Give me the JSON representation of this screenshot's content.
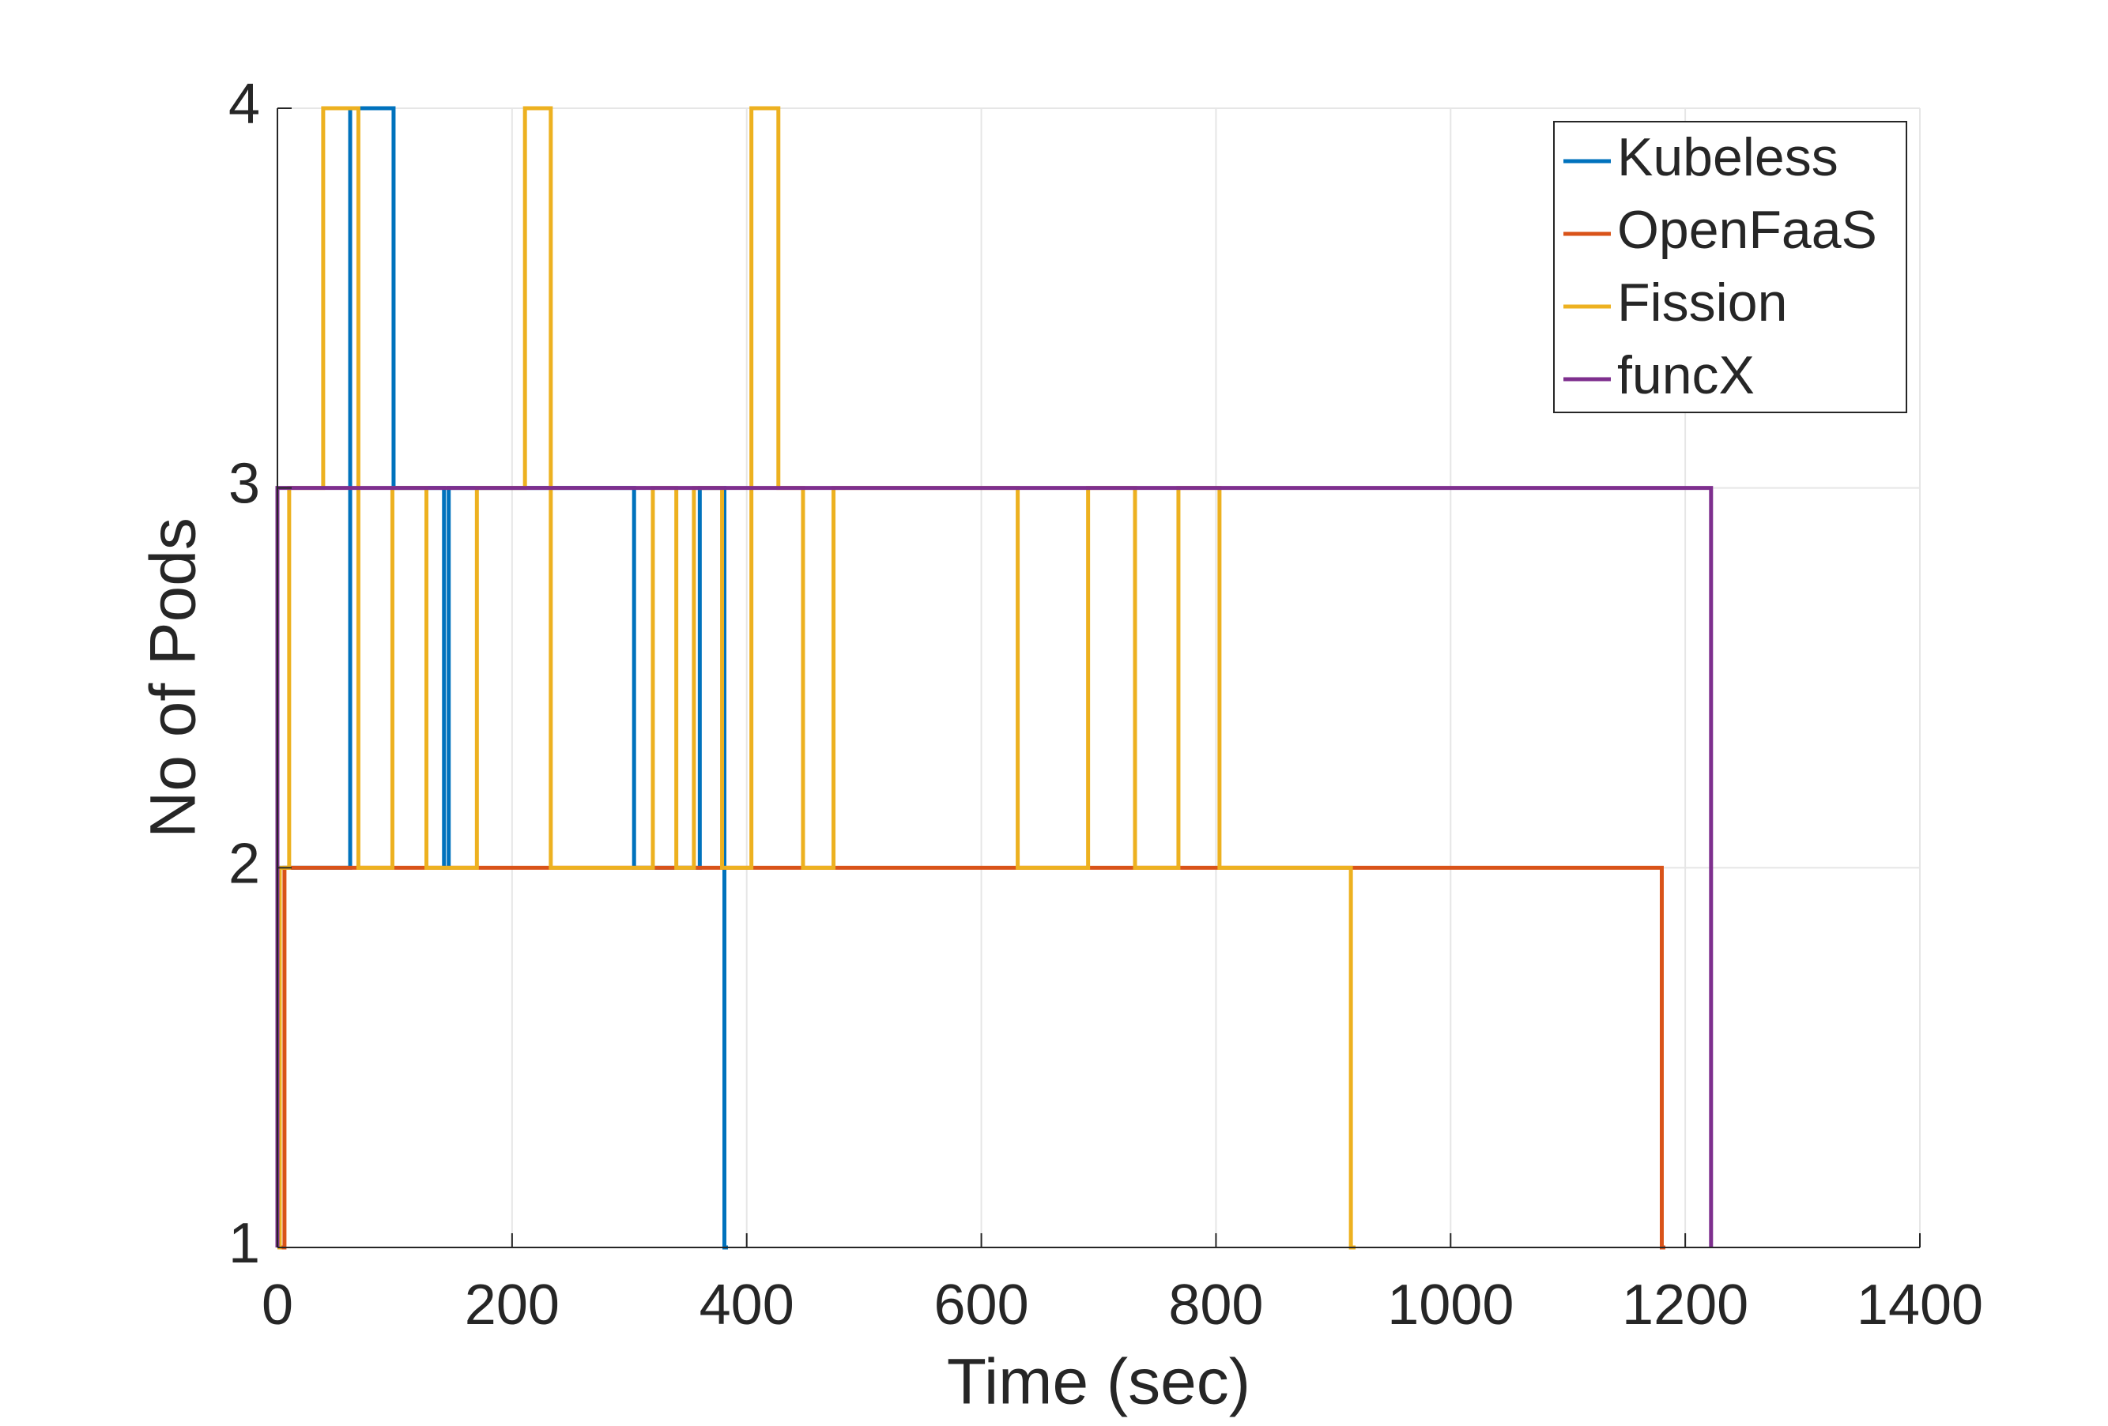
{
  "chart_data": {
    "type": "line",
    "xlabel": "Time (sec)",
    "ylabel": "No of Pods",
    "xlim": [
      0,
      1400
    ],
    "xticks": [
      0,
      200,
      400,
      600,
      800,
      1000,
      1200,
      1400
    ],
    "ylim": [
      1,
      4
    ],
    "yticks": [
      1,
      2,
      3,
      4
    ],
    "grid": true,
    "legend_position": "upper-right",
    "series": [
      {
        "name": "Kubeless",
        "color": "#0072BD",
        "x": [
          0,
          0,
          62,
          62,
          99,
          99,
          142,
          142,
          146,
          146,
          304,
          304,
          360,
          360,
          381,
          381,
          384
        ],
        "values": [
          1,
          2,
          2,
          4,
          4,
          3,
          3,
          2,
          2,
          3,
          3,
          2,
          2,
          3,
          3,
          1,
          1
        ]
      },
      {
        "name": "OpenFaaS",
        "color": "#D95319",
        "x": [
          0,
          6,
          6,
          1180,
          1180,
          1183
        ],
        "values": [
          1,
          1,
          2,
          2,
          1,
          1
        ]
      },
      {
        "name": "Fission",
        "color": "#EDB120",
        "x": [
          0,
          2,
          2,
          10,
          10,
          39,
          39,
          69,
          69,
          98,
          98,
          127,
          127,
          170,
          170,
          211,
          211,
          233,
          233,
          320,
          320,
          340,
          340,
          355,
          355,
          379,
          379,
          404,
          404,
          427,
          427,
          448,
          448,
          474,
          474,
          631,
          631,
          691,
          691,
          731,
          731,
          768,
          768,
          803,
          803,
          915,
          915,
          919
        ],
        "values": [
          1,
          1,
          2,
          2,
          3,
          3,
          4,
          4,
          2,
          2,
          3,
          3,
          2,
          2,
          3,
          3,
          4,
          4,
          2,
          2,
          3,
          3,
          2,
          2,
          3,
          3,
          2,
          2,
          4,
          4,
          3,
          3,
          2,
          2,
          3,
          3,
          2,
          2,
          3,
          3,
          2,
          2,
          3,
          3,
          2,
          2,
          1,
          1
        ]
      },
      {
        "name": "funcX",
        "color": "#7E2F8E",
        "x": [
          0,
          0,
          1222,
          1222
        ],
        "values": [
          1,
          3,
          3,
          1
        ]
      }
    ]
  }
}
